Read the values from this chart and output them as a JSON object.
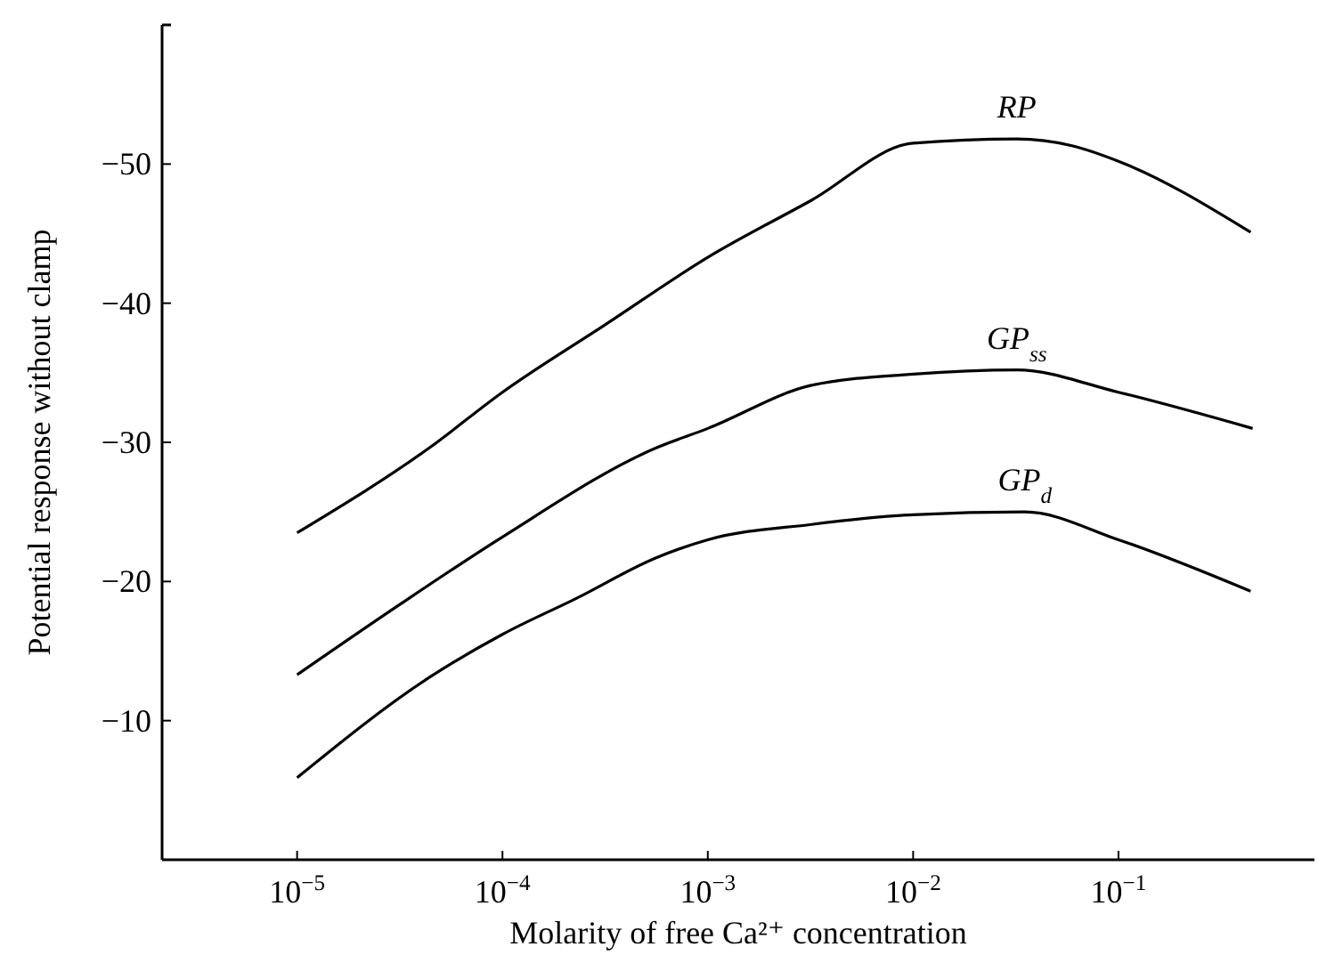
{
  "chart_data": {
    "type": "line",
    "xlabel": "Molarity of free Ca²⁺ concentration",
    "ylabel": "Potential response without clamp",
    "log": "x",
    "xlim": [
      2.2e-06,
      0.9
    ],
    "xticks": [
      {
        "value": 1e-05,
        "label": "10$^{−5}$"
      },
      {
        "value": 0.0001,
        "label": "10$^{−4}$"
      },
      {
        "value": 0.001,
        "label": "10$^{−3}$"
      },
      {
        "value": 0.01,
        "label": "10$^{−2}$"
      },
      {
        "value": 0.1,
        "label": "10$^{−1}$"
      }
    ],
    "ylim": [
      0,
      -60
    ],
    "yticks": [
      -10,
      -20,
      -30,
      -40,
      -50
    ],
    "marker": "none",
    "line_style": "solid",
    "series": [
      {
        "name": "RP",
        "color": "#000000",
        "x": [
          1e-05,
          4.4e-05,
          0.0001,
          0.00032,
          0.001,
          0.0032,
          0.01,
          0.032,
          0.06,
          0.1,
          0.44
        ],
        "values": [
          -23.5,
          -29.6,
          -33.6,
          -38.5,
          -43.3,
          -47.4,
          -51.5,
          -51.8,
          -51.3,
          -50.2,
          -45.1
        ]
      },
      {
        "name": "GP$_{ss}$",
        "color": "#000000",
        "x": [
          1e-05,
          3.2e-05,
          0.0001,
          0.00056,
          0.001,
          0.0032,
          0.01,
          0.032,
          0.1,
          0.45
        ],
        "values": [
          -13.3,
          -18.4,
          -23.2,
          -29.6,
          -31,
          -34.1,
          -34.9,
          -35.2,
          -33.6,
          -31
        ]
      },
      {
        "name": "GP$_{d}$",
        "color": "#000000",
        "x": [
          1e-05,
          4.4e-05,
          0.0001,
          0.00023,
          0.00056,
          0.001,
          0.0032,
          0.01,
          0.035,
          0.1,
          0.44
        ],
        "values": [
          -5.9,
          -13.1,
          -16.2,
          -18.8,
          -21.7,
          -23,
          -24.1,
          -24.8,
          -25,
          -23,
          -19.3
        ]
      }
    ]
  }
}
